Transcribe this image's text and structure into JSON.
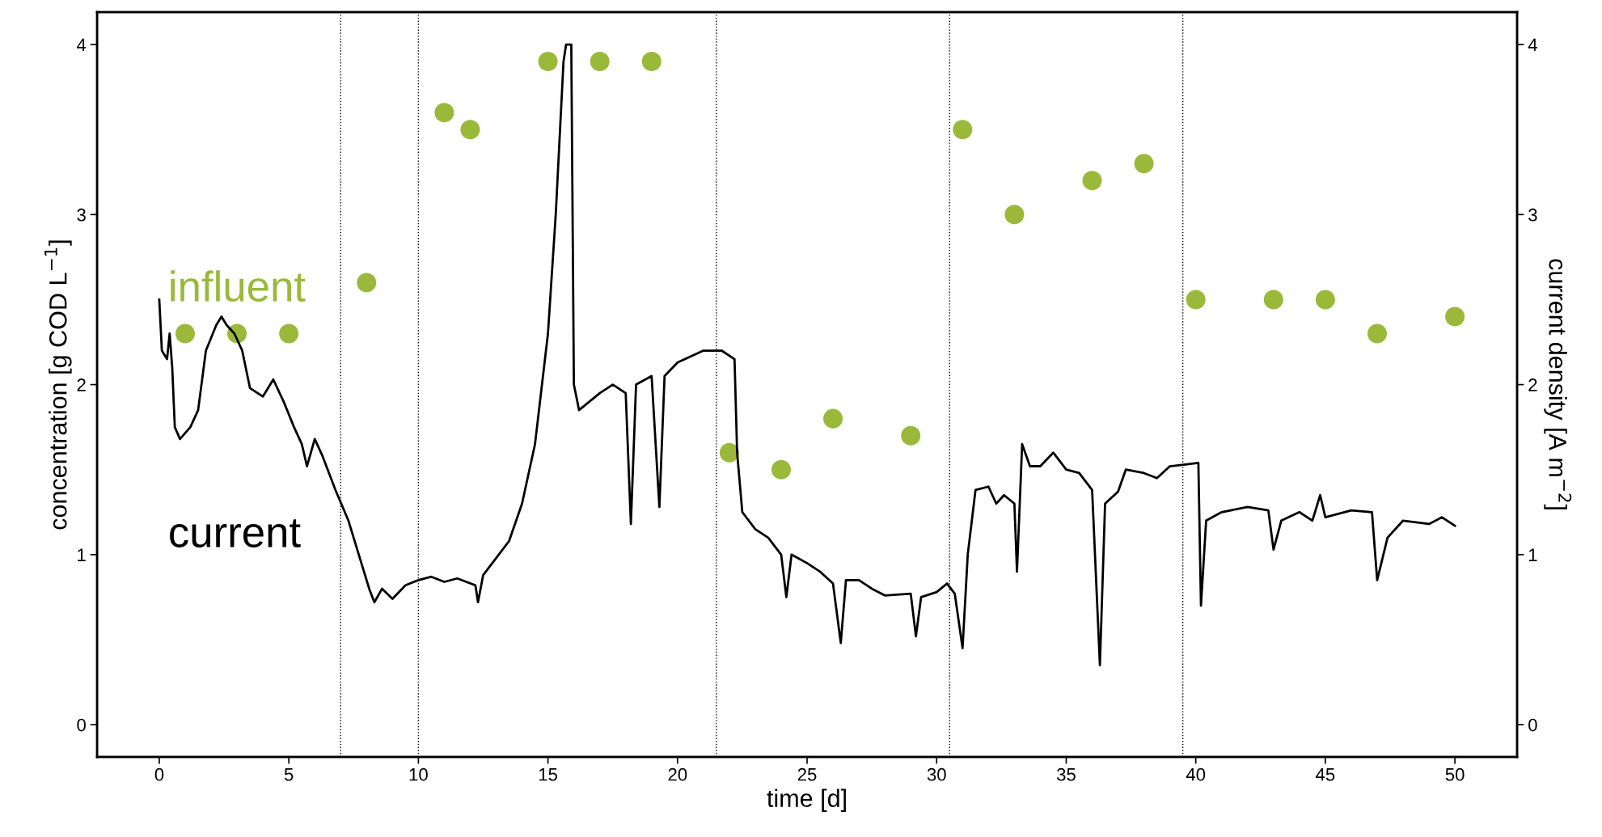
{
  "chart_data": {
    "type": "line",
    "xlabel": "time [d]",
    "ylabel": "concentration [g COD L$^{−1}$]",
    "y2label": "current density [A m$^{−2}$]",
    "xlim": [
      -2.4,
      52.4
    ],
    "xticks": [
      0,
      5,
      10,
      15,
      20,
      25,
      30,
      35,
      40,
      45,
      50
    ],
    "ylim": [
      -0.19,
      4.19
    ],
    "yticks": [
      0,
      1,
      2,
      3,
      4
    ],
    "y2lim": [
      -0.19,
      4.19
    ],
    "y2ticks": [
      0,
      1,
      2,
      3,
      4
    ],
    "grid": false,
    "legend": false,
    "ref_lines": [
      {
        "axis": "x",
        "value": 7,
        "line_style": "dotted",
        "color": "#000000"
      },
      {
        "axis": "x",
        "value": 10,
        "line_style": "dotted",
        "color": "#000000"
      },
      {
        "axis": "x",
        "value": 21.5,
        "line_style": "dotted",
        "color": "#000000"
      },
      {
        "axis": "x",
        "value": 30.5,
        "line_style": "dotted",
        "color": "#000000"
      },
      {
        "axis": "x",
        "value": 39.5,
        "line_style": "dotted",
        "color": "#000000"
      }
    ],
    "series": [
      {
        "name": "influent",
        "type": "scatter",
        "marker": "circle",
        "color": "#9ab93b",
        "x": [
          1,
          3,
          5,
          8,
          11,
          12,
          15,
          17,
          19,
          22,
          24,
          26,
          29,
          31,
          33,
          36,
          38,
          40,
          43,
          45,
          47,
          50
        ],
        "values": [
          2.3,
          2.3,
          2.3,
          2.6,
          3.6,
          3.5,
          3.9,
          3.9,
          3.9,
          1.6,
          1.5,
          1.8,
          1.7,
          3.5,
          3.0,
          3.2,
          3.3,
          2.5,
          2.5,
          2.5,
          2.3,
          2.4
        ]
      },
      {
        "name": "current",
        "axis": "y2",
        "color": "#000000",
        "line_style": "solid",
        "x": [
          0,
          0.1,
          0.3,
          0.4,
          0.5,
          0.6,
          0.8,
          1.2,
          1.5,
          1.8,
          2.2,
          2.4,
          2.6,
          2.9,
          3.2,
          3.5,
          4.0,
          4.4,
          4.8,
          5.2,
          5.5,
          5.7,
          6.0,
          6.3,
          6.8,
          7.3,
          7.8,
          8.1,
          8.3,
          8.6,
          9.0,
          9.5,
          10.0,
          10.5,
          11,
          11.5,
          12.2,
          12.3,
          12.5,
          13,
          13.5,
          14,
          14.5,
          15,
          15.3,
          15.6,
          15.7,
          15.9,
          16.0,
          16.2,
          16.6,
          17,
          17.5,
          18,
          18.2,
          18.4,
          19,
          19.3,
          19.5,
          20,
          21,
          21.7,
          22.2,
          22.3,
          22.5,
          23,
          23.5,
          24,
          24.2,
          24.4,
          25,
          25.5,
          26,
          26.3,
          26.5,
          27,
          27.5,
          28,
          29,
          29.2,
          29.4,
          30,
          30.4,
          30.7,
          31.0,
          31.2,
          31.5,
          32,
          32.3,
          32.6,
          33,
          33.1,
          33.3,
          33.6,
          34,
          34.5,
          35,
          35.5,
          36,
          36.3,
          36.5,
          37,
          37.3,
          38,
          38.5,
          39,
          39.6,
          40.1,
          40.2,
          40.4,
          41,
          42,
          42.8,
          43.0,
          43.3,
          44,
          44.5,
          44.8,
          45,
          46,
          46.8,
          47.0,
          47.4,
          48,
          49,
          49.5,
          50
        ],
        "values": [
          2.5,
          2.2,
          2.15,
          2.3,
          2.1,
          1.75,
          1.68,
          1.75,
          1.85,
          2.2,
          2.35,
          2.4,
          2.35,
          2.3,
          2.2,
          1.98,
          1.93,
          2.03,
          1.9,
          1.75,
          1.65,
          1.52,
          1.68,
          1.58,
          1.38,
          1.2,
          0.95,
          0.8,
          0.72,
          0.8,
          0.74,
          0.82,
          0.85,
          0.87,
          0.84,
          0.86,
          0.82,
          0.72,
          0.88,
          0.98,
          1.08,
          1.3,
          1.65,
          2.3,
          3.0,
          3.9,
          4.0,
          4.0,
          2.0,
          1.85,
          1.9,
          1.95,
          2.0,
          1.95,
          1.18,
          2.0,
          2.05,
          1.28,
          2.05,
          2.13,
          2.2,
          2.2,
          2.15,
          1.6,
          1.25,
          1.15,
          1.1,
          1.0,
          0.75,
          1.0,
          0.95,
          0.9,
          0.83,
          0.48,
          0.85,
          0.85,
          0.8,
          0.76,
          0.77,
          0.52,
          0.75,
          0.78,
          0.83,
          0.77,
          0.45,
          1.0,
          1.38,
          1.4,
          1.3,
          1.35,
          1.3,
          0.9,
          1.65,
          1.52,
          1.52,
          1.6,
          1.5,
          1.48,
          1.38,
          0.35,
          1.3,
          1.37,
          1.5,
          1.48,
          1.45,
          1.52,
          1.53,
          1.54,
          0.7,
          1.2,
          1.25,
          1.28,
          1.26,
          1.03,
          1.2,
          1.25,
          1.2,
          1.35,
          1.22,
          1.26,
          1.25,
          0.85,
          1.1,
          1.2,
          1.18,
          1.22,
          1.17
        ]
      }
    ]
  }
}
